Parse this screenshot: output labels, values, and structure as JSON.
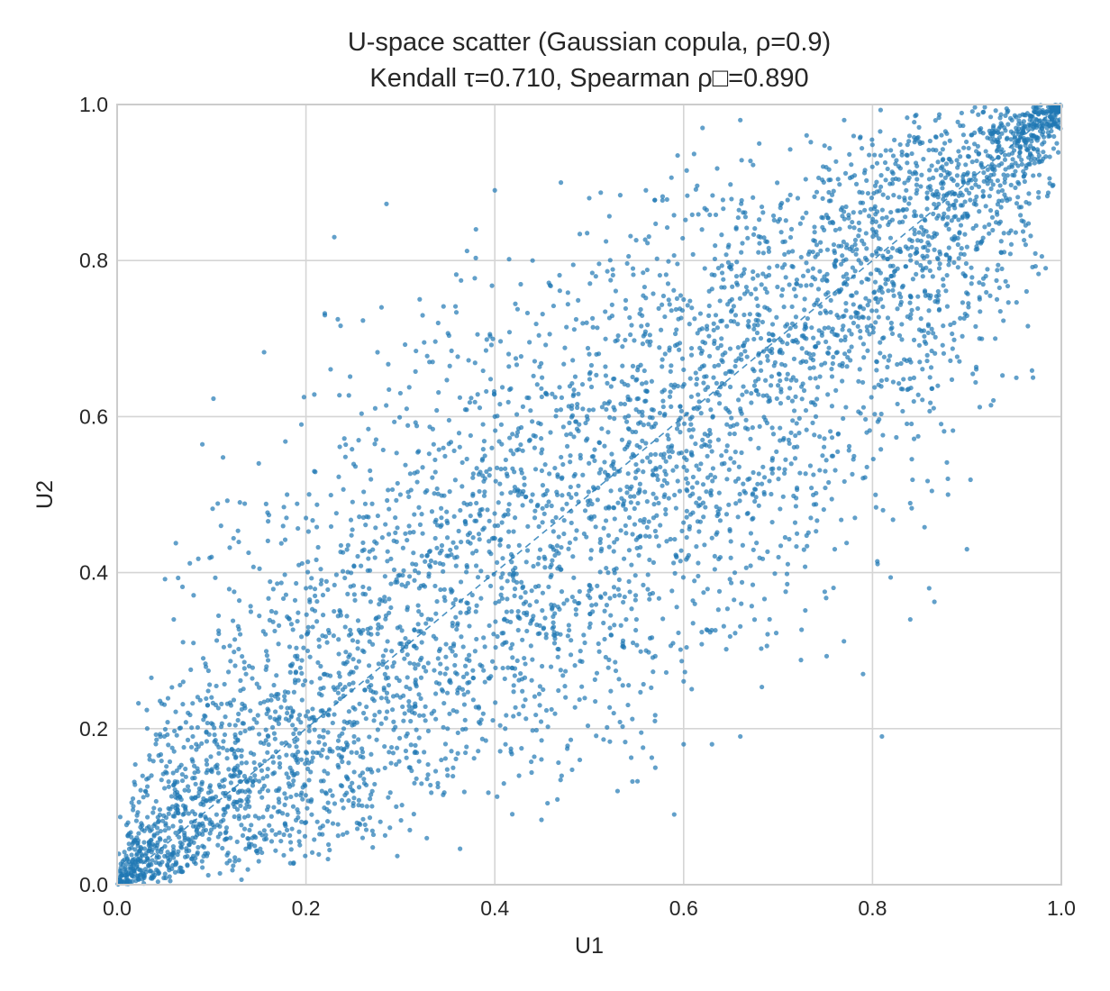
{
  "chart_data": {
    "type": "scatter",
    "title": "U-space scatter (Gaussian copula, ρ=0.9)",
    "subtitle": "Kendall τ=0.710, Spearman ρ□=0.890",
    "xlabel": "U1",
    "ylabel": "U2",
    "xlim": [
      0.0,
      1.0
    ],
    "ylim": [
      0.0,
      1.0
    ],
    "xticks": [
      0.0,
      0.2,
      0.4,
      0.6,
      0.8,
      1.0
    ],
    "yticks": [
      0.0,
      0.2,
      0.4,
      0.6,
      0.8,
      1.0
    ],
    "xtick_labels": [
      "0.0",
      "0.2",
      "0.4",
      "0.6",
      "0.8",
      "1.0"
    ],
    "ytick_labels": [
      "0.0",
      "0.2",
      "0.4",
      "0.6",
      "0.8",
      "1.0"
    ],
    "grid": true,
    "point_color": "#1f77b4",
    "point_alpha": 0.7,
    "reference_line": {
      "style": "dashed",
      "from": [
        0.0,
        0.0
      ],
      "to": [
        1.0,
        1.0
      ],
      "color": "#1f77b4"
    },
    "series": [
      {
        "name": "",
        "sample_size": 5000,
        "copula_rho": 0.9,
        "kendall_tau": 0.71,
        "spearman_rho": 0.89,
        "points": [
          [
            0.01,
            0.01
          ],
          [
            0.02,
            0.03
          ],
          [
            0.03,
            0.02
          ],
          [
            0.04,
            0.05
          ],
          [
            0.06,
            0.04
          ],
          [
            0.08,
            0.11
          ],
          [
            0.1,
            0.08
          ],
          [
            0.12,
            0.14
          ],
          [
            0.14,
            0.1
          ],
          [
            0.16,
            0.19
          ],
          [
            0.18,
            0.22
          ],
          [
            0.2,
            0.17
          ],
          [
            0.22,
            0.27
          ],
          [
            0.24,
            0.2
          ],
          [
            0.26,
            0.3
          ],
          [
            0.28,
            0.33
          ],
          [
            0.3,
            0.24
          ],
          [
            0.32,
            0.38
          ],
          [
            0.34,
            0.29
          ],
          [
            0.36,
            0.42
          ],
          [
            0.38,
            0.35
          ],
          [
            0.4,
            0.46
          ],
          [
            0.42,
            0.39
          ],
          [
            0.44,
            0.5
          ],
          [
            0.46,
            0.41
          ],
          [
            0.48,
            0.55
          ],
          [
            0.5,
            0.47
          ],
          [
            0.52,
            0.58
          ],
          [
            0.54,
            0.51
          ],
          [
            0.56,
            0.62
          ],
          [
            0.58,
            0.53
          ],
          [
            0.6,
            0.66
          ],
          [
            0.62,
            0.57
          ],
          [
            0.64,
            0.7
          ],
          [
            0.66,
            0.61
          ],
          [
            0.68,
            0.73
          ],
          [
            0.7,
            0.64
          ],
          [
            0.72,
            0.77
          ],
          [
            0.74,
            0.69
          ],
          [
            0.76,
            0.81
          ],
          [
            0.78,
            0.72
          ],
          [
            0.8,
            0.84
          ],
          [
            0.82,
            0.78
          ],
          [
            0.84,
            0.88
          ],
          [
            0.86,
            0.82
          ],
          [
            0.88,
            0.91
          ],
          [
            0.9,
            0.86
          ],
          [
            0.92,
            0.94
          ],
          [
            0.94,
            0.9
          ],
          [
            0.96,
            0.97
          ],
          [
            0.98,
            0.99
          ],
          [
            0.99,
            0.98
          ],
          [
            0.99,
            0.995
          ],
          [
            0.995,
            0.99
          ],
          [
            0.985,
            0.975
          ],
          [
            0.06,
            0.34
          ],
          [
            0.11,
            0.46
          ],
          [
            0.22,
            0.73
          ],
          [
            0.23,
            0.83
          ],
          [
            0.28,
            0.74
          ],
          [
            0.4,
            0.89
          ],
          [
            0.47,
            0.9
          ],
          [
            0.5,
            0.88
          ],
          [
            0.38,
            0.84
          ],
          [
            0.56,
            0.89
          ],
          [
            0.62,
            0.97
          ],
          [
            0.66,
            0.98
          ],
          [
            0.77,
            0.98
          ],
          [
            0.84,
            0.34
          ],
          [
            0.9,
            0.43
          ],
          [
            0.81,
            0.19
          ],
          [
            0.79,
            0.27
          ],
          [
            0.59,
            0.09
          ],
          [
            0.53,
            0.12
          ],
          [
            0.63,
            0.18
          ],
          [
            0.66,
            0.19
          ],
          [
            0.76,
            0.43
          ],
          [
            0.72,
            0.45
          ],
          [
            0.97,
            0.65
          ],
          [
            0.93,
            0.7
          ],
          [
            0.88,
            0.5
          ],
          [
            0.86,
            0.38
          ],
          [
            0.6,
            0.18
          ],
          [
            0.57,
            0.15
          ],
          [
            0.49,
            0.16
          ],
          [
            0.18,
            0.5
          ],
          [
            0.15,
            0.54
          ],
          [
            0.13,
            0.49
          ],
          [
            0.3,
            0.63
          ],
          [
            0.34,
            0.72
          ],
          [
            0.44,
            0.8
          ],
          [
            0.45,
            0.65
          ],
          [
            0.31,
            0.07
          ],
          [
            0.35,
            0.14
          ],
          [
            0.26,
            0.06
          ],
          [
            0.2,
            0.47
          ],
          [
            0.1,
            0.42
          ],
          [
            0.07,
            0.26
          ],
          [
            0.05,
            0.19
          ],
          [
            0.03,
            0.12
          ],
          [
            0.09,
            0.03
          ],
          [
            0.12,
            0.06
          ],
          [
            0.15,
            0.03
          ],
          [
            0.2,
            0.08
          ],
          [
            0.25,
            0.12
          ],
          [
            0.35,
            0.2
          ],
          [
            0.45,
            0.28
          ],
          [
            0.55,
            0.34
          ],
          [
            0.65,
            0.44
          ],
          [
            0.75,
            0.53
          ],
          [
            0.85,
            0.67
          ],
          [
            0.92,
            0.78
          ],
          [
            0.96,
            0.85
          ],
          [
            0.7,
            0.85
          ],
          [
            0.6,
            0.75
          ],
          [
            0.5,
            0.68
          ],
          [
            0.4,
            0.6
          ],
          [
            0.3,
            0.5
          ],
          [
            0.2,
            0.38
          ],
          [
            0.1,
            0.24
          ],
          [
            0.52,
            0.4
          ],
          [
            0.58,
            0.5
          ],
          [
            0.64,
            0.55
          ],
          [
            0.74,
            0.6
          ],
          [
            0.82,
            0.72
          ],
          [
            0.44,
            0.34
          ],
          [
            0.36,
            0.27
          ],
          [
            0.26,
            0.17
          ],
          [
            0.16,
            0.1
          ],
          [
            0.08,
            0.06
          ]
        ]
      }
    ]
  }
}
